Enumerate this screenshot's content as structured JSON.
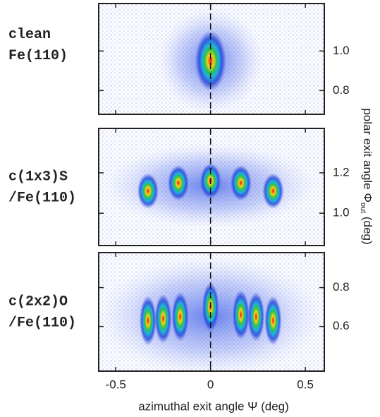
{
  "chart_data": [
    {
      "type": "heatmap",
      "label": [
        "clean",
        "Fe(110)"
      ],
      "xlim": [
        -0.59,
        0.6
      ],
      "ylim": [
        0.68,
        1.24
      ],
      "xticks": [
        -0.5,
        0,
        0.5
      ],
      "yticks": [
        {
          "value": 1,
          "label": "1.0"
        },
        {
          "value": 0.8,
          "label": "0.8"
        }
      ],
      "spots": {
        "x": [
          0
        ],
        "y": [
          0.95
        ]
      }
    },
    {
      "type": "heatmap",
      "label": [
        "c(1x3)S",
        "/Fe(110)"
      ],
      "xlim": [
        -0.59,
        0.6
      ],
      "ylim": [
        0.84,
        1.42
      ],
      "xticks": [
        -0.5,
        0,
        0.5
      ],
      "yticks": [
        {
          "value": 1.2,
          "label": "1.2"
        },
        {
          "value": 1,
          "label": "1.0"
        }
      ],
      "y_label": [
        "polar exit angle Φ",
        "out",
        " (deg)"
      ],
      "spots": {
        "x": [
          -0.33,
          -0.17,
          0,
          0.16,
          0.33
        ],
        "y": [
          1.11,
          1.15,
          1.16,
          1.15,
          1.11
        ]
      }
    },
    {
      "type": "heatmap",
      "label": [
        "c(2x2)O",
        "/Fe(110)"
      ],
      "xlim": [
        -0.59,
        0.6
      ],
      "ylim": [
        0.37,
        0.98
      ],
      "xticks": [
        -0.5,
        0,
        0.5
      ],
      "yticks": [
        {
          "value": 0.8,
          "label": "0.8"
        },
        {
          "value": 0.6,
          "label": "0.6"
        }
      ],
      "x_label": "azimuthal exit angle Ψ (deg)",
      "spots": {
        "x": [
          -0.33,
          -0.25,
          -0.16,
          0,
          0.16,
          0.24,
          0.33
        ],
        "y": [
          0.63,
          0.64,
          0.65,
          0.7,
          0.66,
          0.65,
          0.63
        ]
      }
    }
  ]
}
